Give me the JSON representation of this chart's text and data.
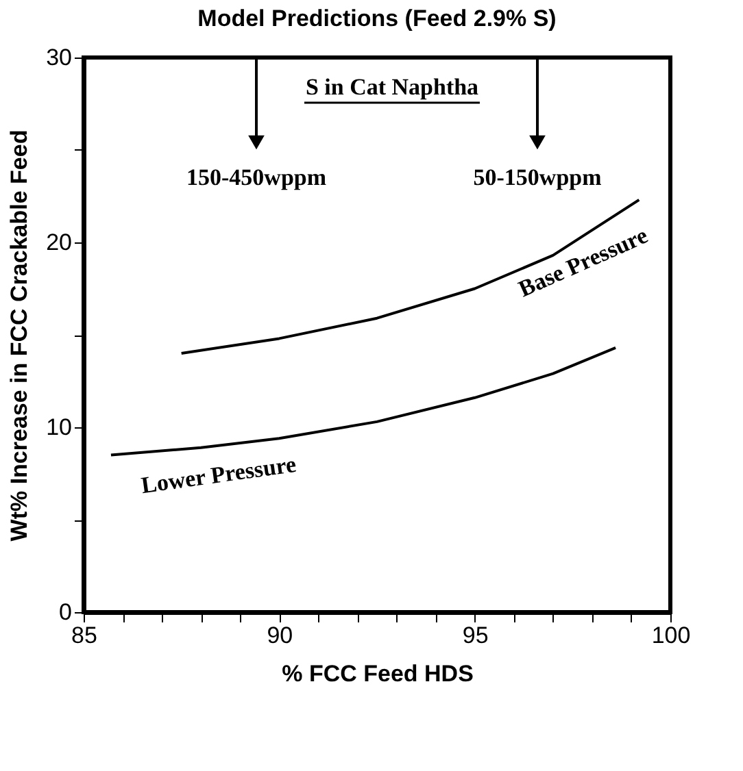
{
  "chart_data": {
    "type": "line",
    "title": "Model Predictions (Feed 2.9% S)",
    "xlabel": "% FCC Feed HDS",
    "ylabel": "Wt% Increase in FCC Crackable Feed",
    "series": [
      {
        "name": "Base Pressure",
        "color": "#000000",
        "x": [
          87.5,
          90,
          92.5,
          95,
          97,
          99.2
        ],
        "values": [
          14.0,
          14.8,
          15.9,
          17.5,
          19.3,
          22.3
        ]
      },
      {
        "name": "Lower Pressure",
        "color": "#000000",
        "x": [
          85.7,
          88,
          90,
          92.5,
          95,
          97,
          98.6
        ],
        "values": [
          8.5,
          8.9,
          9.4,
          10.3,
          11.6,
          12.9,
          14.3
        ]
      }
    ],
    "xlim": [
      85,
      100
    ],
    "ylim": [
      0,
      30
    ],
    "xticks": [
      85,
      {
        "value": 86,
        "label": null
      },
      {
        "value": 87,
        "label": null
      },
      {
        "value": 88,
        "label": null
      },
      {
        "value": 89,
        "label": null
      },
      90,
      {
        "value": 91,
        "label": null
      },
      {
        "value": 92,
        "label": null
      },
      {
        "value": 93,
        "label": null
      },
      {
        "value": 94,
        "label": null
      },
      95,
      {
        "value": 96,
        "label": null
      },
      {
        "value": 97,
        "label": null
      },
      {
        "value": 98,
        "label": null
      },
      {
        "value": 99,
        "label": null
      },
      100
    ],
    "yticks": [
      0,
      {
        "value": 5,
        "label": null
      },
      10,
      {
        "value": 15,
        "label": null
      },
      20,
      {
        "value": 25,
        "label": null
      },
      30
    ],
    "annotations": [
      "S in Cat Naphtha",
      "150-450wppm",
      "50-150wppm"
    ],
    "grid": false,
    "legend": false,
    "marker": "none",
    "line_style": "solid"
  }
}
